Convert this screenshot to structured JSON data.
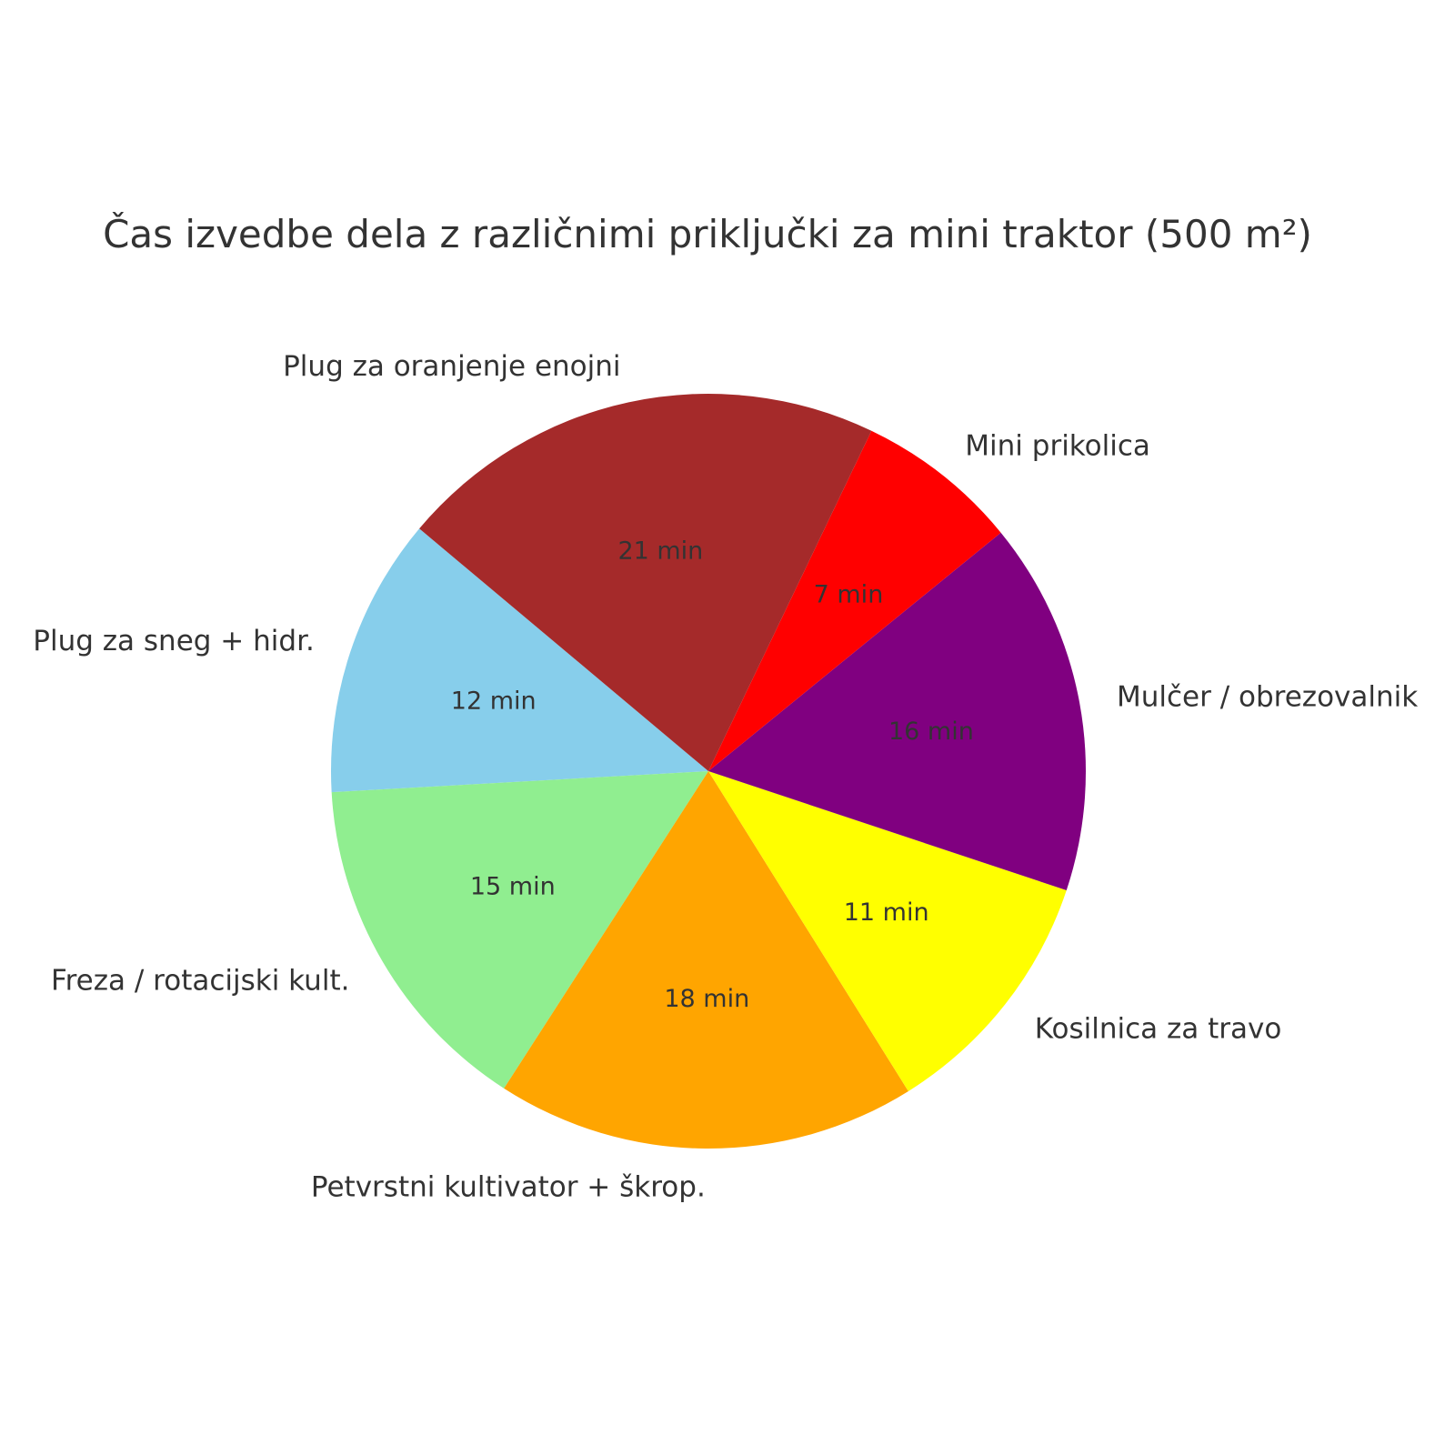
{
  "chart_data": {
    "type": "pie",
    "title": "Čas izvedbe dela z različnimi priključki za mini traktor (500 m²)",
    "start_angle_deg": 140,
    "direction": "counterclockwise",
    "value_label_suffix": " min",
    "slices": [
      {
        "label": "Plug za sneg + hidr.",
        "value": 12,
        "color": "#87CEEB"
      },
      {
        "label": "Freza / rotacijski kult.",
        "value": 15,
        "color": "#90EE90"
      },
      {
        "label": "Petvrstni kultivator + škrop.",
        "value": 18,
        "color": "#FFA500"
      },
      {
        "label": "Kosilnica za travo",
        "value": 11,
        "color": "#FFFF00"
      },
      {
        "label": "Mulčer / obrezovalnik",
        "value": 16,
        "color": "#800080"
      },
      {
        "label": "Mini prikolica",
        "value": 7,
        "color": "#FF0000"
      },
      {
        "label": "Plug za oranjenje enojni",
        "value": 21,
        "color": "#A52A2A"
      }
    ]
  }
}
